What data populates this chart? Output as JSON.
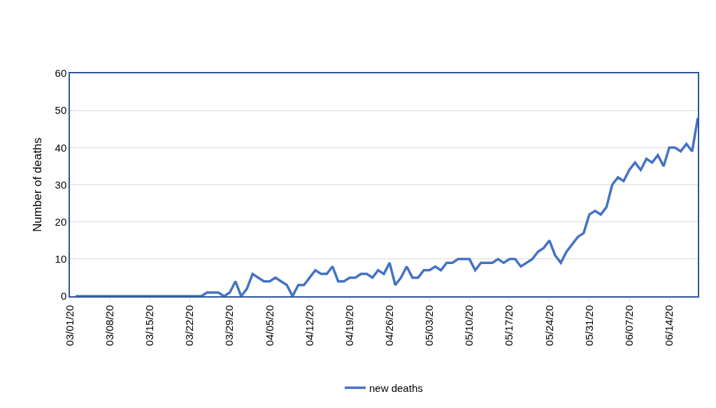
{
  "chart_data": {
    "type": "line",
    "ylabel": "Number of deaths",
    "x": [
      "--03-02",
      "--03-03",
      "--03-04",
      "--03-05",
      "--03-06",
      "--03-07",
      "--03-08",
      "--03-09",
      "--03-10",
      "--03-11",
      "--03-12",
      "--03-13",
      "--03-14",
      "--03-15",
      "--03-16",
      "--03-17",
      "--03-18",
      "--03-19",
      "--03-20",
      "--03-21",
      "--03-22",
      "--03-23",
      "--03-24",
      "--03-25",
      "--03-26",
      "--03-27",
      "--03-28",
      "--03-29",
      "--03-30",
      "--03-31",
      "--04-01",
      "--04-02",
      "--04-03",
      "--04-04",
      "--04-05",
      "--04-06",
      "--04-07",
      "--04-08",
      "--04-09",
      "--04-10",
      "--04-11",
      "--04-12",
      "--04-13",
      "--04-14",
      "--04-15",
      "--04-16",
      "--04-17",
      "--04-18",
      "--04-19",
      "--04-20",
      "--04-21",
      "--04-22",
      "--04-23",
      "--04-24",
      "--04-25",
      "--04-26",
      "--04-27",
      "--04-28",
      "--04-29",
      "--04-30",
      "--05-01",
      "--05-02",
      "--05-03",
      "--05-04",
      "--05-05",
      "--05-06",
      "--05-07",
      "--05-08",
      "--05-09",
      "--05-10",
      "--05-11",
      "--05-12",
      "--05-13",
      "--05-14",
      "--05-15",
      "--05-16",
      "--05-17",
      "--05-18",
      "--05-19",
      "--05-20",
      "--05-21",
      "--05-22",
      "--05-23",
      "--05-24",
      "--05-25",
      "--05-26",
      "--05-27",
      "--05-28",
      "--05-29",
      "--05-30",
      "--05-31",
      "--06-01",
      "--06-02",
      "--06-03",
      "--06-04",
      "--06-05",
      "--06-06",
      "--06-07",
      "--06-08",
      "--06-09",
      "--06-10",
      "--06-11",
      "--06-12",
      "--06-13",
      "--06-14",
      "--06-15",
      "--06-16",
      "--06-17",
      "--06-18",
      "--06-19"
    ],
    "series": [
      {
        "name": "new deaths",
        "color": "#4472c4",
        "values": [
          0,
          0,
          0,
          0,
          0,
          0,
          0,
          0,
          0,
          0,
          0,
          0,
          0,
          0,
          0,
          0,
          0,
          0,
          0,
          0,
          0,
          0,
          0,
          1,
          1,
          1,
          0,
          1,
          4,
          0,
          2,
          6,
          5,
          4,
          4,
          5,
          4,
          3,
          0,
          3,
          3,
          5,
          7,
          6,
          6,
          8,
          4,
          4,
          5,
          5,
          6,
          6,
          5,
          7,
          6,
          9,
          3,
          5,
          8,
          5,
          5,
          7,
          7,
          8,
          7,
          9,
          9,
          10,
          10,
          10,
          7,
          9,
          9,
          9,
          10,
          9,
          10,
          10,
          8,
          9,
          10,
          12,
          13,
          15,
          11,
          9,
          12,
          14,
          16,
          17,
          22,
          23,
          22,
          24,
          30,
          32,
          31,
          34,
          36,
          34,
          37,
          36,
          38,
          35,
          40,
          40,
          39,
          41,
          39,
          48
        ]
      }
    ],
    "xlim": [
      "--03-01",
      "--06-19"
    ],
    "xticks": [
      {
        "value": "--03-01",
        "label": "03/01/20"
      },
      {
        "value": "--03-08",
        "label": "03/08/20"
      },
      {
        "value": "--03-15",
        "label": "03/15/20"
      },
      {
        "value": "--03-22",
        "label": "03/22/20"
      },
      {
        "value": "--03-29",
        "label": "03/29/20"
      },
      {
        "value": "--04-05",
        "label": "04/05/20"
      },
      {
        "value": "--04-12",
        "label": "04/12/20"
      },
      {
        "value": "--04-19",
        "label": "04/19/20"
      },
      {
        "value": "--04-26",
        "label": "04/26/20"
      },
      {
        "value": "--05-03",
        "label": "05/03/20"
      },
      {
        "value": "--05-10",
        "label": "05/10/20"
      },
      {
        "value": "--05-17",
        "label": "05/17/20"
      },
      {
        "value": "--05-24",
        "label": "05/24/20"
      },
      {
        "value": "--05-31",
        "label": "05/31/20"
      },
      {
        "value": "--06-07",
        "label": "06/07/20"
      },
      {
        "value": "--06-14",
        "label": "06/14/20"
      }
    ],
    "ylim": [
      0,
      60
    ],
    "yticks": [
      0,
      10,
      20,
      30,
      40,
      50,
      60
    ],
    "grid": "y",
    "legend": "bottom",
    "marker": "none",
    "line_style": "solid"
  }
}
